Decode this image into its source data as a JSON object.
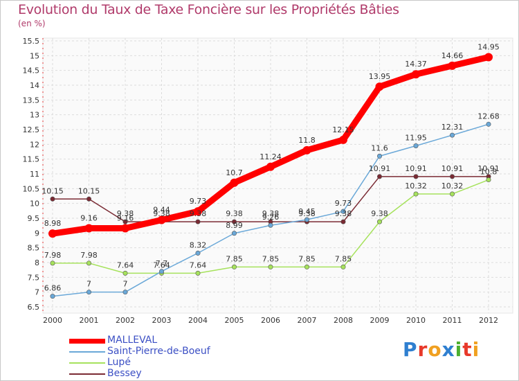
{
  "chart_data": {
    "type": "line",
    "title": "Evolution du Taux de Taxe Foncière sur les Propriétés Bâties",
    "ylabel": "(en %)",
    "xlabel": "",
    "categories": [
      "2000",
      "2001",
      "2002",
      "2003",
      "2004",
      "2005",
      "2006",
      "2007",
      "2008",
      "2009",
      "2010",
      "2011",
      "2012"
    ],
    "ylim": [
      6.5,
      15.5
    ],
    "yticks": [
      6.5,
      7,
      7.5,
      8,
      8.5,
      9,
      9.5,
      10,
      10.5,
      11,
      11.5,
      12,
      12.5,
      13,
      13.5,
      14,
      14.5,
      15,
      15.5
    ],
    "ytick_labels": [
      "6.5",
      "7",
      "7.5",
      "8",
      "8.5",
      "9",
      "9.5",
      "10",
      "10.5",
      "11",
      "11.5",
      "12",
      "12.5",
      "13",
      "13.5",
      "14",
      "14.5",
      "15",
      "15.5"
    ],
    "grid": true,
    "legend_position": "bottom-left",
    "series": [
      {
        "name": "MALLEVAL",
        "color": "#ff0000",
        "values": [
          8.98,
          9.16,
          9.16,
          9.44,
          9.73,
          10.7,
          11.24,
          11.8,
          12.15,
          13.95,
          14.37,
          14.66,
          14.95
        ],
        "labels": [
          "8.98",
          "9.16",
          "9.16",
          "9.44",
          "9.73",
          "10.7",
          "11.24",
          "11.8",
          "12.15",
          "13.95",
          "14.37",
          "14.66",
          "14.95"
        ]
      },
      {
        "name": "Saint-Pierre-de-Boeuf",
        "color": "#6aa8d8",
        "values": [
          6.86,
          7,
          7,
          7.7,
          8.32,
          8.99,
          9.26,
          9.45,
          9.73,
          11.6,
          11.95,
          12.31,
          12.68
        ],
        "labels": [
          "6.86",
          "7",
          "7",
          "7.7",
          "8.32",
          "8.99",
          "9.26",
          "9.45",
          "9.73",
          "11.6",
          "11.95",
          "12.31",
          "12.68"
        ]
      },
      {
        "name": "Lupé",
        "color": "#a6e25c",
        "values": [
          7.98,
          7.98,
          7.64,
          7.64,
          7.64,
          7.85,
          7.85,
          7.85,
          7.85,
          9.38,
          10.32,
          10.32,
          10.8
        ],
        "labels": [
          "7.98",
          "7.98",
          "7.64",
          "7.64",
          "7.64",
          "7.85",
          "7.85",
          "7.85",
          "7.85",
          "9.38",
          "10.32",
          "10.32",
          "10.8"
        ]
      },
      {
        "name": "Bessey",
        "color": "#7a2a33",
        "values": [
          10.15,
          10.15,
          9.38,
          9.38,
          9.38,
          9.38,
          9.38,
          9.38,
          9.38,
          10.91,
          10.91,
          10.91,
          10.91
        ],
        "labels": [
          "10.15",
          "10.15",
          "9.38",
          "9.38",
          "9.38",
          "9.38",
          "9.38",
          "9.38",
          "9.38",
          "10.91",
          "10.91",
          "10.91",
          "10.91"
        ]
      }
    ]
  },
  "logo": {
    "text": "Proxiti",
    "letters": [
      "P",
      "r",
      "o",
      "x",
      "i",
      "t",
      "i"
    ],
    "colors": [
      "#2f7fd0",
      "#e8392a",
      "#f0a020",
      "#2f7fd0",
      "#4caf30",
      "#e8392a",
      "#f0a020"
    ]
  }
}
